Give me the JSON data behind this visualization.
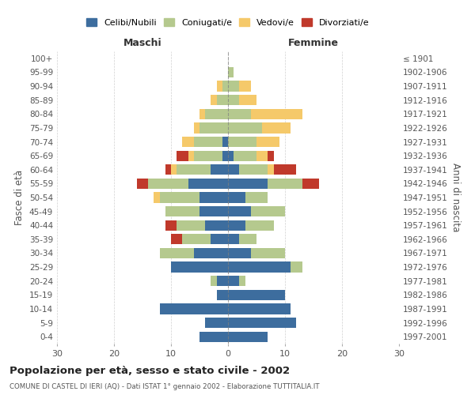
{
  "age_groups": [
    "0-4",
    "5-9",
    "10-14",
    "15-19",
    "20-24",
    "25-29",
    "30-34",
    "35-39",
    "40-44",
    "45-49",
    "50-54",
    "55-59",
    "60-64",
    "65-69",
    "70-74",
    "75-79",
    "80-84",
    "85-89",
    "90-94",
    "95-99",
    "100+"
  ],
  "birth_years": [
    "1997-2001",
    "1992-1996",
    "1987-1991",
    "1982-1986",
    "1977-1981",
    "1972-1976",
    "1967-1971",
    "1962-1966",
    "1957-1961",
    "1952-1956",
    "1947-1951",
    "1942-1946",
    "1937-1941",
    "1932-1936",
    "1927-1931",
    "1922-1926",
    "1917-1921",
    "1912-1916",
    "1907-1911",
    "1902-1906",
    "≤ 1901"
  ],
  "maschi": {
    "celibi": [
      5,
      4,
      12,
      2,
      2,
      10,
      6,
      3,
      4,
      5,
      5,
      7,
      3,
      1,
      1,
      0,
      0,
      0,
      0,
      0,
      0
    ],
    "coniugati": [
      0,
      0,
      0,
      0,
      1,
      0,
      6,
      5,
      5,
      6,
      7,
      7,
      6,
      5,
      5,
      5,
      4,
      2,
      1,
      0,
      0
    ],
    "vedovi": [
      0,
      0,
      0,
      0,
      0,
      0,
      0,
      0,
      0,
      0,
      1,
      0,
      1,
      1,
      2,
      1,
      1,
      1,
      1,
      0,
      0
    ],
    "divorziati": [
      0,
      0,
      0,
      0,
      0,
      0,
      0,
      2,
      2,
      0,
      0,
      2,
      1,
      2,
      0,
      0,
      0,
      0,
      0,
      0,
      0
    ]
  },
  "femmine": {
    "nubili": [
      7,
      12,
      11,
      10,
      2,
      11,
      4,
      2,
      3,
      4,
      3,
      7,
      2,
      1,
      0,
      0,
      0,
      0,
      0,
      0,
      0
    ],
    "coniugate": [
      0,
      0,
      0,
      0,
      1,
      2,
      6,
      3,
      5,
      6,
      4,
      6,
      5,
      4,
      5,
      6,
      4,
      2,
      2,
      1,
      0
    ],
    "vedove": [
      0,
      0,
      0,
      0,
      0,
      0,
      0,
      0,
      0,
      0,
      0,
      0,
      1,
      2,
      4,
      5,
      9,
      3,
      2,
      0,
      0
    ],
    "divorziate": [
      0,
      0,
      0,
      0,
      0,
      0,
      0,
      0,
      0,
      0,
      0,
      3,
      4,
      1,
      0,
      0,
      0,
      0,
      0,
      0,
      0
    ]
  },
  "colors": {
    "celibi": "#3d6d9e",
    "coniugati": "#b5c98e",
    "vedovi": "#f5c96a",
    "divorziati": "#c0392b"
  },
  "xlim": 30,
  "title": "Popolazione per età, sesso e stato civile - 2002",
  "subtitle": "COMUNE DI CASTEL DI IERI (AQ) - Dati ISTAT 1° gennaio 2002 - Elaborazione TUTTITALIA.IT",
  "ylabel_left": "Fasce di età",
  "ylabel_right": "Anni di nascita",
  "header_maschi": "Maschi",
  "header_femmine": "Femmine",
  "legend_labels": [
    "Celibi/Nubili",
    "Coniugati/e",
    "Vedovi/e",
    "Divorziati/e"
  ]
}
